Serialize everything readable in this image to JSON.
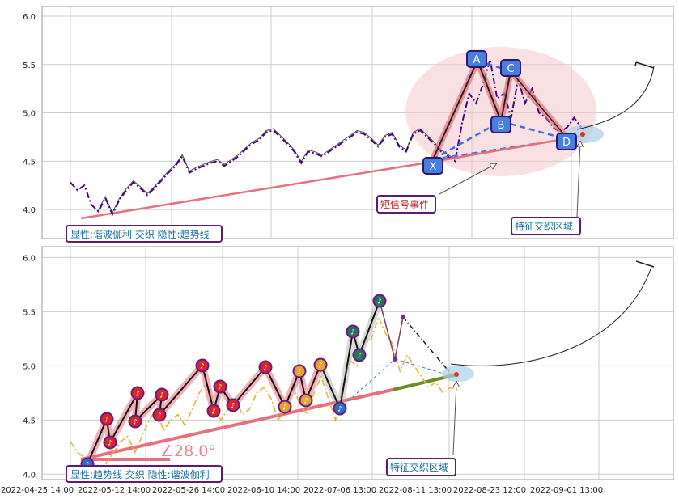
{
  "chart_data": [
    {
      "type": "line",
      "panel": "top",
      "ylim": [
        3.7,
        6.1
      ],
      "yticks": [
        "4.0",
        "4.5",
        "5.0",
        "5.5",
        "6.0"
      ],
      "grid": true,
      "annotation_box": "显性:谐波伽利 交织 隐性:趋势线",
      "event_label": "短信号事件",
      "zone_label": "特征交织区域",
      "pattern_points": [
        {
          "label": "X",
          "y": 4.5
        },
        {
          "label": "A",
          "y": 5.55
        },
        {
          "label": "B",
          "y": 4.9
        },
        {
          "label": "C",
          "y": 5.45
        },
        {
          "label": "D",
          "y": 4.78
        }
      ],
      "price_series": [
        4.28,
        4.2,
        4.25,
        4.05,
        3.98,
        4.12,
        3.95,
        4.1,
        4.2,
        4.28,
        4.22,
        4.15,
        4.22,
        4.3,
        4.38,
        4.45,
        4.55,
        4.38,
        4.42,
        4.45,
        4.48,
        4.5,
        4.45,
        4.5,
        4.55,
        4.62,
        4.68,
        4.72,
        4.8,
        4.82,
        4.75,
        4.68,
        4.6,
        4.48,
        4.6,
        4.58,
        4.55,
        4.6,
        4.65,
        4.7,
        4.75,
        4.8,
        4.78,
        4.72,
        4.65,
        4.75,
        4.78,
        4.65,
        4.6,
        4.78,
        4.82,
        4.75,
        4.68,
        4.6,
        4.55,
        4.5,
        4.9,
        5.2,
        5.1,
        5.3,
        5.55,
        5.15,
        5.2,
        4.95,
        5.35,
        5.1,
        5.25,
        5.0,
        4.95,
        4.85,
        4.8,
        4.85,
        4.95,
        4.85
      ]
    },
    {
      "type": "line",
      "panel": "bottom",
      "ylim": [
        3.95,
        6.1
      ],
      "yticks": [
        "4.0",
        "4.5",
        "5.0",
        "5.5",
        "6.0"
      ],
      "grid": true,
      "annotation_box": "显性:趋势线 交织 隐性:谐波伽利",
      "angle_label": "∠28.0°",
      "zone_label": "特征交织区域",
      "xticks": [
        "2022-04-25 14:00",
        "2022-05-12 14:00",
        "2022-05-26 14:00",
        "2022-06-10 14:00",
        "2022-07-06 13:00",
        "2022-08-11 13:00",
        "2022-08-23 12:00",
        "2022-09-01 13:00"
      ],
      "price_series": [
        4.3,
        4.2,
        4.15,
        4.05,
        3.95,
        4.1,
        4.2,
        4.3,
        4.35,
        4.2,
        4.35,
        4.5,
        4.6,
        4.4,
        4.5,
        4.55,
        4.45,
        4.6,
        4.75,
        4.85,
        4.65,
        4.5,
        4.6,
        4.7,
        4.55,
        4.6,
        4.75,
        4.8,
        4.7,
        4.5,
        4.6,
        4.82,
        4.65,
        4.55,
        4.75,
        4.9,
        4.7,
        4.5,
        4.8,
        5.05,
        5.0,
        5.2,
        5.25,
        5.45,
        5.3,
        5.2,
        4.95,
        5.1,
        5.0,
        4.9,
        4.8,
        4.85,
        4.75,
        4.8,
        4.78
      ]
    }
  ]
}
